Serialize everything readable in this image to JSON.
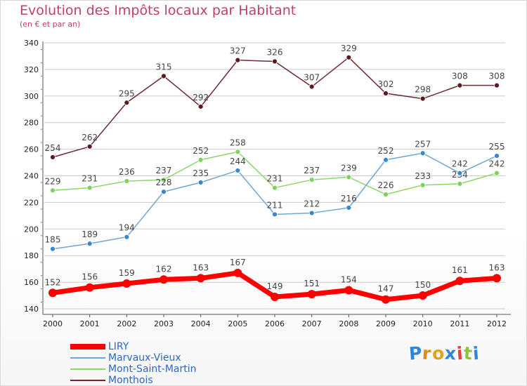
{
  "title": "Evolution des Impôts locaux par Habitant",
  "subtitle": "(en € et par an)",
  "brand": "Proxiti",
  "colors": {
    "title": "#c0406a",
    "legend_text": "#2e66c8",
    "axis": "#555555",
    "grid": "#cccccc"
  },
  "chart_data": {
    "type": "line",
    "x": [
      "2000",
      "2001",
      "2002",
      "2003",
      "2004",
      "2005",
      "2006",
      "2007",
      "2008",
      "2009",
      "2010",
      "2011",
      "2012"
    ],
    "ylim": [
      140,
      340
    ],
    "yticks": [
      140,
      160,
      180,
      200,
      220,
      240,
      260,
      280,
      300,
      320,
      340
    ],
    "grid": "horizontal",
    "legend_position": "bottom-left",
    "series": [
      {
        "name": "LIRY",
        "color": "#ff0000",
        "width": 7,
        "values": [
          152,
          156,
          159,
          162,
          163,
          167,
          149,
          151,
          154,
          147,
          150,
          161,
          163
        ]
      },
      {
        "name": "Marvaux-Vieux",
        "color": "#6fa6d6",
        "width": 1.5,
        "values": [
          185,
          189,
          194,
          228,
          235,
          244,
          211,
          212,
          216,
          252,
          257,
          242,
          255
        ]
      },
      {
        "name": "Mont-Saint-Martin",
        "color": "#8dd667",
        "width": 1.5,
        "values": [
          229,
          231,
          236,
          237,
          252,
          258,
          231,
          237,
          239,
          226,
          233,
          234,
          242
        ]
      },
      {
        "name": "Monthois",
        "color": "#6b2a30",
        "width": 1.5,
        "values": [
          254,
          262,
          295,
          315,
          292,
          327,
          326,
          307,
          329,
          302,
          298,
          308,
          308
        ]
      }
    ]
  }
}
